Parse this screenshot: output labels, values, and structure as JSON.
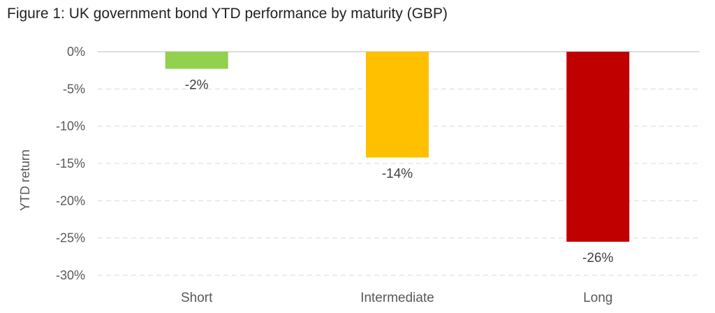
{
  "chart_data": {
    "type": "bar",
    "title": "Figure 1: UK government bond YTD performance by maturity (GBP)",
    "xlabel": "",
    "ylabel": "YTD return",
    "categories": [
      "Short",
      "Intermediate",
      "Long"
    ],
    "values": [
      -2.3,
      -14.2,
      -25.5
    ],
    "data_labels": [
      "-2%",
      "-14%",
      "-26%"
    ],
    "colors": [
      "#92d050",
      "#ffc000",
      "#c00000"
    ],
    "ylim": [
      -30,
      0
    ],
    "yticks": [
      0,
      -5,
      -10,
      -15,
      -20,
      -25,
      -30
    ],
    "ytick_labels": [
      "0%",
      "-5%",
      "-10%",
      "-15%",
      "-20%",
      "-25%",
      "-30%"
    ],
    "grid": true,
    "legend": "none"
  }
}
